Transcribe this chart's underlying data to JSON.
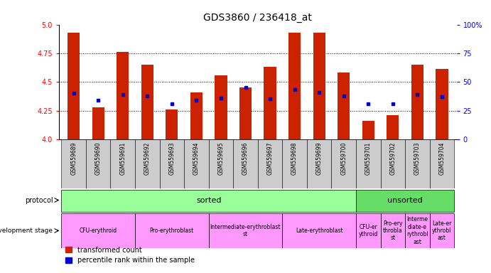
{
  "title": "GDS3860 / 236418_at",
  "samples": [
    "GSM559689",
    "GSM559690",
    "GSM559691",
    "GSM559692",
    "GSM559693",
    "GSM559694",
    "GSM559695",
    "GSM559696",
    "GSM559697",
    "GSM559698",
    "GSM559699",
    "GSM559700",
    "GSM559701",
    "GSM559702",
    "GSM559703",
    "GSM559704"
  ],
  "bar_values": [
    4.93,
    4.28,
    4.76,
    4.65,
    4.26,
    4.41,
    4.56,
    4.45,
    4.63,
    4.93,
    4.93,
    4.58,
    4.16,
    4.21,
    4.65,
    4.61
  ],
  "dot_values": [
    4.4,
    4.34,
    4.39,
    4.38,
    4.31,
    4.34,
    4.36,
    4.45,
    4.35,
    4.43,
    4.41,
    4.38,
    4.31,
    4.31,
    4.39,
    4.37
  ],
  "ylim": [
    4.0,
    5.0
  ],
  "y2lim": [
    0,
    100
  ],
  "yticks": [
    4.0,
    4.25,
    4.5,
    4.75,
    5.0
  ],
  "y2ticks": [
    0,
    25,
    50,
    75,
    100
  ],
  "bar_color": "#cc2200",
  "dot_color": "#0000cc",
  "label_bg_color": "#cccccc",
  "protocol_sorted_color": "#99ff99",
  "protocol_unsorted_color": "#66dd66",
  "dev_stage_color": "#ff99ff",
  "n_sorted": 12,
  "n_total": 16,
  "dev_groups_sorted": [
    {
      "label": "CFU-erythroid",
      "start": 0,
      "end": 2
    },
    {
      "label": "Pro-erythroblast",
      "start": 3,
      "end": 5
    },
    {
      "label": "Intermediate-erythroblast\nst",
      "start": 6,
      "end": 8
    },
    {
      "label": "Late-erythroblast",
      "start": 9,
      "end": 11
    }
  ],
  "dev_groups_unsorted": [
    {
      "label": "CFU-er\nythroid",
      "start": 12,
      "end": 12
    },
    {
      "label": "Pro-ery\nthrobla\nst",
      "start": 13,
      "end": 13
    },
    {
      "label": "Interme\ndiate-e\nrythrobl\nast",
      "start": 14,
      "end": 14
    },
    {
      "label": "Late-er\nythrobl\nast",
      "start": 15,
      "end": 15
    }
  ],
  "legend_items": [
    {
      "label": "transformed count",
      "color": "#cc2200"
    },
    {
      "label": "percentile rank within the sample",
      "color": "#0000cc"
    }
  ]
}
